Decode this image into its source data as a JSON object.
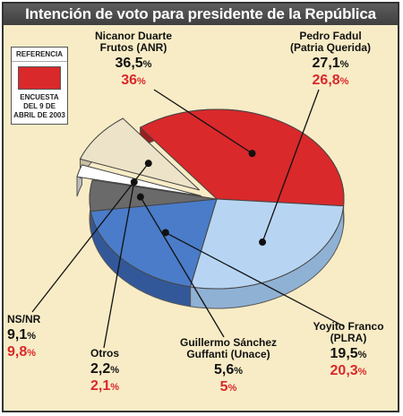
{
  "title": "Intención de voto para presidente de la República",
  "reference": {
    "heading": "REFERENCIA",
    "text": "ENCUESTA DEL 9 DE ABRIL DE 2003",
    "color": "#d9292b"
  },
  "chart_data": {
    "type": "pie",
    "title": "Intención de voto para presidente de la República",
    "unit": "%",
    "categories": [
      "Nicanor Duarte Frutos (ANR)",
      "Pedro Fadul (Patria Querida)",
      "Yoyito Franco (PLRA)",
      "Guillermo Sánchez Guffanti (Unace)",
      "Otros",
      "NS/NR"
    ],
    "series": [
      {
        "values": [
          36.5,
          27.1,
          19.5,
          5.6,
          2.2,
          9.1
        ],
        "value_labels": [
          "36,5",
          "27,1",
          "19,5",
          "5,6",
          "2,2",
          "9,1"
        ]
      },
      {
        "name": "ENCUESTA DEL 9 DE ABRIL DE 2003",
        "values": [
          36,
          26.8,
          20.3,
          5,
          2.1,
          9.8
        ],
        "value_labels": [
          "36",
          "26,8",
          "20,3",
          "5",
          "2,1",
          "9,8"
        ]
      }
    ],
    "colors": [
      "#d9292b",
      "#b7d5f2",
      "#4a7cc9",
      "#6a6a6a",
      "#ffffff",
      "#ece3c8"
    ],
    "exploded": [
      "Otros",
      "NS/NR"
    ]
  },
  "labels": [
    {
      "name_lines": [
        "Nicanor Duarte",
        "Frutos (ANR)"
      ],
      "current": "36,5",
      "previous": "36"
    },
    {
      "name_lines": [
        "Pedro Fadul",
        "(Patria Querida)"
      ],
      "current": "27,1",
      "previous": "26,8"
    },
    {
      "name_lines": [
        "Yoyito Franco",
        "(PLRA)"
      ],
      "current": "19,5",
      "previous": "20,3"
    },
    {
      "name_lines": [
        "Guillermo Sánchez",
        "Guffanti (Unace)"
      ],
      "current": "5,6",
      "previous": "5"
    },
    {
      "name_lines": [
        "Otros"
      ],
      "current": "2,2",
      "previous": "2,1"
    },
    {
      "name_lines": [
        "NS/NR"
      ],
      "current": "9,1",
      "previous": "9,8"
    }
  ]
}
